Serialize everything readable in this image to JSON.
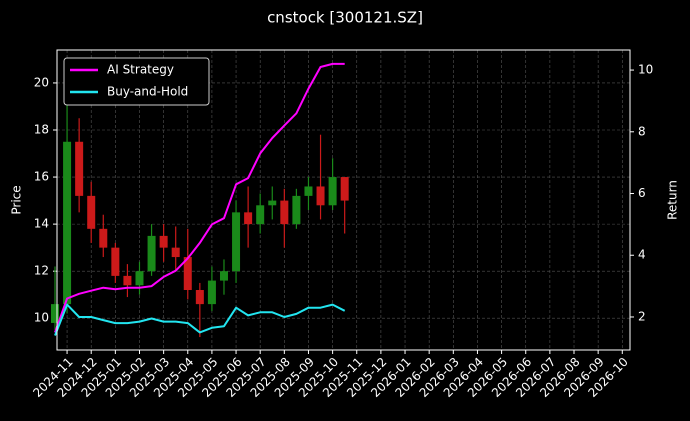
{
  "chart_data": {
    "type": "candlestick",
    "title": "cnstock [300121.SZ]",
    "ylabel": "Price",
    "y2label": "Return",
    "categories": [
      null,
      "2024-11",
      null,
      "2024-12",
      null,
      "2025-01",
      null,
      "2025-02",
      null,
      "2025-03",
      null,
      "2025-04",
      null,
      "2025-05",
      null,
      "2025-06",
      null,
      "2025-07",
      null,
      "2025-08",
      null,
      "2025-09",
      null,
      "2025-10",
      null,
      "2025-11",
      null,
      "2025-12",
      null,
      "2026-01",
      null,
      "2026-02",
      null,
      "2026-03",
      null,
      "2026-04",
      null,
      "2026-05",
      null,
      "2026-06",
      null,
      "2026-07",
      null,
      "2026-08",
      null,
      "2026-09",
      null,
      "2026-10"
    ],
    "open": [
      9.8,
      10.6,
      17.5,
      15.2,
      13.8,
      13.0,
      11.8,
      11.4,
      12.0,
      13.5,
      13.0,
      12.6,
      11.2,
      10.6,
      11.6,
      12.0,
      14.5,
      14.0,
      14.8,
      15.0,
      14.0,
      15.2,
      15.6,
      14.8,
      16.0,
      null,
      null,
      null,
      null,
      null,
      null,
      null,
      null,
      null,
      null,
      null,
      null,
      null,
      null,
      null,
      null,
      null,
      null,
      null,
      null,
      null,
      null,
      null
    ],
    "high": [
      12.2,
      19.8,
      18.5,
      15.8,
      14.4,
      13.2,
      12.3,
      12.4,
      14.0,
      14.0,
      13.9,
      13.8,
      11.5,
      12.2,
      12.5,
      15.0,
      15.6,
      15.3,
      15.6,
      15.5,
      15.5,
      16.0,
      17.8,
      16.8,
      16.0,
      null,
      null,
      null,
      null,
      null,
      null,
      null,
      null,
      null,
      null,
      null,
      null,
      null,
      null,
      null,
      null,
      null,
      null,
      null,
      null,
      null,
      null,
      null
    ],
    "low": [
      9.5,
      10.2,
      14.5,
      13.2,
      12.6,
      11.5,
      10.9,
      11.0,
      11.8,
      12.4,
      12.0,
      10.8,
      9.2,
      10.3,
      11.0,
      11.5,
      13.0,
      13.6,
      14.2,
      13.0,
      13.8,
      14.6,
      14.2,
      14.6,
      13.6,
      null,
      null,
      null,
      null,
      null,
      null,
      null,
      null,
      null,
      null,
      null,
      null,
      null,
      null,
      null,
      null,
      null,
      null,
      null,
      null,
      null,
      null,
      null
    ],
    "close": [
      10.6,
      17.5,
      15.2,
      13.8,
      13.0,
      11.8,
      11.4,
      12.0,
      13.5,
      13.0,
      12.6,
      11.2,
      10.6,
      11.6,
      12.0,
      14.5,
      14.0,
      14.8,
      15.0,
      14.0,
      15.2,
      15.6,
      14.8,
      16.0,
      15.0,
      null,
      null,
      null,
      null,
      null,
      null,
      null,
      null,
      null,
      null,
      null,
      null,
      null,
      null,
      null,
      null,
      null,
      null,
      null,
      null,
      null,
      null,
      null
    ],
    "up_color": "#1a8a1a",
    "down_color": "#cc1a1a",
    "series": [
      {
        "name": "AI Strategy",
        "color": "#ff00ff",
        "axis": "y2",
        "values": [
          1.5,
          2.6,
          2.75,
          2.85,
          2.95,
          2.9,
          2.95,
          2.95,
          3.0,
          3.3,
          3.5,
          3.9,
          4.4,
          5.0,
          5.2,
          6.3,
          6.5,
          7.3,
          7.8,
          8.2,
          8.6,
          9.4,
          10.1,
          10.2,
          10.2,
          null,
          null,
          null,
          null,
          null,
          null,
          null,
          null,
          null,
          null,
          null,
          null,
          null,
          null,
          null,
          null,
          null,
          null,
          null,
          null,
          null,
          null,
          null
        ]
      },
      {
        "name": "Buy-and-Hold",
        "color": "#22e5f0",
        "axis": "y2",
        "values": [
          1.4,
          2.4,
          2.0,
          2.0,
          1.9,
          1.8,
          1.8,
          1.85,
          1.95,
          1.85,
          1.85,
          1.8,
          1.5,
          1.65,
          1.7,
          2.3,
          2.05,
          2.15,
          2.15,
          2.0,
          2.1,
          2.3,
          2.3,
          2.4,
          2.2,
          null,
          null,
          null,
          null,
          null,
          null,
          null,
          null,
          null,
          null,
          null,
          null,
          null,
          null,
          null,
          null,
          null,
          null,
          null,
          null,
          null,
          null,
          null
        ]
      }
    ],
    "ylim": [
      8.65,
      21.4
    ],
    "yticks": [
      10,
      12,
      14,
      16,
      18,
      20
    ],
    "y2lim": [
      0.93,
      10.65
    ],
    "y2ticks": [
      2,
      4,
      6,
      8,
      10
    ],
    "grid": true,
    "legend": "upper-left"
  }
}
